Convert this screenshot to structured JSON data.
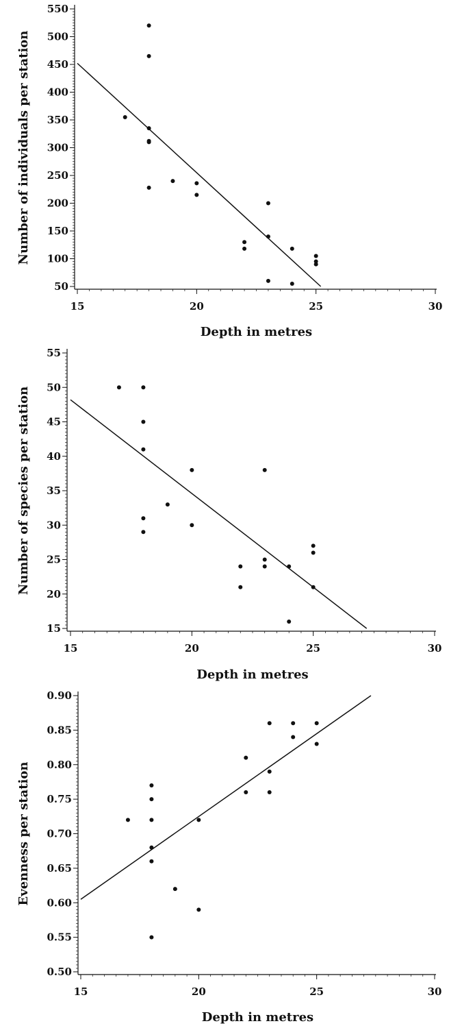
{
  "chart_data": [
    {
      "type": "scatter",
      "xlabel": "Depth in metres",
      "ylabel": "Number of individuals per station",
      "xlim": [
        15,
        30
      ],
      "ylim": [
        50,
        550
      ],
      "xticks": [
        15,
        20,
        25,
        30
      ],
      "yticks": [
        50,
        100,
        150,
        200,
        250,
        300,
        350,
        400,
        450,
        500,
        550
      ],
      "ytick_labels": [
        "50",
        "100",
        "150",
        "200",
        "250",
        "300",
        "350",
        "400",
        "450",
        "500",
        "550"
      ],
      "grid": false,
      "points": [
        {
          "x": 17,
          "y": 355
        },
        {
          "x": 18,
          "y": 520
        },
        {
          "x": 18,
          "y": 465
        },
        {
          "x": 18,
          "y": 335
        },
        {
          "x": 18,
          "y": 312
        },
        {
          "x": 18,
          "y": 310
        },
        {
          "x": 18,
          "y": 228
        },
        {
          "x": 19,
          "y": 240
        },
        {
          "x": 20,
          "y": 236
        },
        {
          "x": 20,
          "y": 215
        },
        {
          "x": 22,
          "y": 130
        },
        {
          "x": 22,
          "y": 118
        },
        {
          "x": 23,
          "y": 200
        },
        {
          "x": 23,
          "y": 140
        },
        {
          "x": 23,
          "y": 60
        },
        {
          "x": 24,
          "y": 118
        },
        {
          "x": 24,
          "y": 55
        },
        {
          "x": 25,
          "y": 105
        },
        {
          "x": 25,
          "y": 95
        },
        {
          "x": 25,
          "y": 90
        }
      ],
      "fit_line": [
        [
          15,
          452
        ],
        [
          25.2,
          50
        ]
      ]
    },
    {
      "type": "scatter",
      "xlabel": "Depth in metres",
      "ylabel": "Number of species per station",
      "xlim": [
        15,
        30
      ],
      "ylim": [
        15,
        55
      ],
      "xticks": [
        15,
        20,
        25,
        30
      ],
      "yticks": [
        15,
        20,
        25,
        30,
        35,
        40,
        45,
        50,
        55
      ],
      "ytick_labels": [
        "15",
        "20",
        "25",
        "30",
        "35",
        "40",
        "45",
        "50",
        "55"
      ],
      "grid": false,
      "points": [
        {
          "x": 17,
          "y": 50
        },
        {
          "x": 18,
          "y": 50
        },
        {
          "x": 18,
          "y": 45
        },
        {
          "x": 18,
          "y": 41
        },
        {
          "x": 18,
          "y": 31
        },
        {
          "x": 18,
          "y": 29
        },
        {
          "x": 19,
          "y": 33
        },
        {
          "x": 20,
          "y": 38
        },
        {
          "x": 20,
          "y": 30
        },
        {
          "x": 22,
          "y": 24
        },
        {
          "x": 22,
          "y": 21
        },
        {
          "x": 23,
          "y": 38
        },
        {
          "x": 23,
          "y": 25
        },
        {
          "x": 23,
          "y": 24
        },
        {
          "x": 24,
          "y": 24
        },
        {
          "x": 24,
          "y": 16
        },
        {
          "x": 25,
          "y": 27
        },
        {
          "x": 25,
          "y": 26
        },
        {
          "x": 25,
          "y": 21
        }
      ],
      "fit_line": [
        [
          15,
          48.2
        ],
        [
          27.2,
          15
        ]
      ]
    },
    {
      "type": "scatter",
      "xlabel": "Depth in metres",
      "ylabel": "Evenness per station",
      "xlim": [
        15,
        30
      ],
      "ylim": [
        0.5,
        0.9
      ],
      "xticks": [
        15,
        20,
        25,
        30
      ],
      "yticks": [
        0.5,
        0.55,
        0.6,
        0.65,
        0.7,
        0.75,
        0.8,
        0.85,
        0.9
      ],
      "ytick_labels": [
        "0.50",
        "0.55",
        "0.60",
        "0.65",
        "0.70",
        "0.75",
        "0.80",
        "0.85",
        "0.90"
      ],
      "grid": false,
      "points": [
        {
          "x": 17,
          "y": 0.72
        },
        {
          "x": 18,
          "y": 0.77
        },
        {
          "x": 18,
          "y": 0.75
        },
        {
          "x": 18,
          "y": 0.72
        },
        {
          "x": 18,
          "y": 0.68
        },
        {
          "x": 18,
          "y": 0.66
        },
        {
          "x": 18,
          "y": 0.55
        },
        {
          "x": 19,
          "y": 0.62
        },
        {
          "x": 20,
          "y": 0.72
        },
        {
          "x": 20,
          "y": 0.59
        },
        {
          "x": 22,
          "y": 0.81
        },
        {
          "x": 22,
          "y": 0.76
        },
        {
          "x": 23,
          "y": 0.86
        },
        {
          "x": 23,
          "y": 0.79
        },
        {
          "x": 23,
          "y": 0.76
        },
        {
          "x": 24,
          "y": 0.86
        },
        {
          "x": 24,
          "y": 0.84
        },
        {
          "x": 25,
          "y": 0.86
        },
        {
          "x": 25,
          "y": 0.83
        }
      ],
      "fit_line": [
        [
          15,
          0.605
        ],
        [
          27.3,
          0.9
        ]
      ]
    }
  ]
}
